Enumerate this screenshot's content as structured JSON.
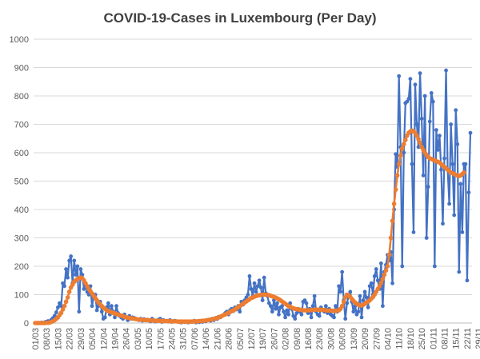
{
  "chart_data": {
    "type": "line",
    "title": "COVID-19-Cases in Luxembourg (Per Day)",
    "xlabel": "",
    "ylabel": "",
    "ylim": [
      0,
      1000
    ],
    "y_ticks": [
      0,
      100,
      200,
      300,
      400,
      500,
      600,
      700,
      800,
      900,
      1000
    ],
    "grid": true,
    "legend": "none",
    "x_tick_labels": [
      "01/03",
      "08/03",
      "15/03",
      "22/03",
      "29/03",
      "05/04",
      "12/04",
      "19/04",
      "26/04",
      "03/05",
      "10/05",
      "17/05",
      "24/05",
      "31/05",
      "07/06",
      "14/06",
      "21/06",
      "28/06",
      "05/07",
      "12/07",
      "19/07",
      "26/07",
      "02/08",
      "09/08",
      "16/08",
      "23/08",
      "30/08",
      "06/09",
      "13/09",
      "20/09",
      "27/09",
      "04/10",
      "11/10",
      "18/10",
      "25/10",
      "01/11",
      "08/11",
      "15/11",
      "22/11",
      "29/11"
    ],
    "tick_step_days": 7,
    "series": [
      {
        "color": "#4472C4",
        "values": [
          0,
          0,
          1,
          0,
          2,
          0,
          3,
          5,
          7,
          4,
          12,
          18,
          26,
          38,
          55,
          70,
          60,
          140,
          130,
          190,
          160,
          220,
          235,
          140,
          220,
          170,
          200,
          40,
          190,
          170,
          120,
          140,
          110,
          100,
          130,
          60,
          90,
          100,
          45,
          60,
          75,
          40,
          15,
          20,
          55,
          70,
          30,
          60,
          40,
          20,
          60,
          35,
          25,
          20,
          15,
          30,
          20,
          10,
          25,
          15,
          20,
          18,
          15,
          12,
          10,
          15,
          8,
          14,
          10,
          12,
          9,
          6,
          15,
          10,
          5,
          8,
          12,
          15,
          4,
          10,
          6,
          8,
          5,
          10,
          4,
          6,
          8,
          5,
          4,
          3,
          2,
          4,
          3,
          5,
          2,
          3,
          6,
          4,
          8,
          2,
          5,
          3,
          6,
          4,
          8,
          6,
          10,
          12,
          8,
          15,
          10,
          18,
          14,
          22,
          20,
          25,
          28,
          35,
          40,
          30,
          45,
          50,
          42,
          55,
          48,
          60,
          40,
          75,
          65,
          80,
          90,
          100,
          165,
          120,
          95,
          140,
          110,
          130,
          150,
          125,
          80,
          160,
          105,
          95,
          70,
          60,
          40,
          80,
          50,
          70,
          30,
          55,
          60,
          40,
          20,
          45,
          30,
          70,
          50,
          25,
          15,
          35,
          50,
          40,
          30,
          75,
          80,
          70,
          35,
          50,
          20,
          60,
          95,
          40,
          30,
          25,
          55,
          45,
          40,
          60,
          35,
          50,
          30,
          25,
          20,
          60,
          40,
          130,
          110,
          180,
          80,
          15,
          70,
          95,
          110,
          75,
          40,
          60,
          30,
          40,
          95,
          20,
          80,
          110,
          90,
          55,
          130,
          140,
          100,
          165,
          190,
          150,
          120,
          210,
          60,
          180,
          205,
          240,
          220,
          250,
          140,
          400,
          595,
          550,
          870,
          620,
          200,
          600,
          775,
          780,
          790,
          860,
          560,
          320,
          840,
          700,
          620,
          880,
          720,
          520,
          800,
          300,
          480,
          710,
          810,
          780,
          200,
          680,
          610,
          660,
          540,
          350,
          580,
          890,
          540,
          420,
          700,
          560,
          380,
          750,
          630,
          180,
          490,
          320,
          560,
          560,
          150,
          460,
          670
        ]
      },
      {
        "color": "#ED7D31",
        "values": [
          0,
          0,
          0,
          0,
          0,
          0,
          0,
          1,
          1,
          2,
          4,
          6,
          10,
          15,
          20,
          28,
          36,
          48,
          60,
          75,
          90,
          110,
          125,
          135,
          145,
          150,
          155,
          158,
          160,
          158,
          150,
          140,
          130,
          120,
          112,
          104,
          96,
          88,
          80,
          72,
          66,
          60,
          54,
          50,
          45,
          42,
          40,
          38,
          36,
          34,
          32,
          30,
          28,
          26,
          24,
          22,
          20,
          19,
          18,
          17,
          16,
          15,
          14,
          13,
          12,
          12,
          11,
          11,
          10,
          10,
          10,
          9,
          9,
          9,
          8,
          8,
          8,
          8,
          7,
          7,
          7,
          7,
          7,
          6,
          6,
          6,
          6,
          6,
          5,
          5,
          5,
          5,
          5,
          5,
          5,
          5,
          5,
          5,
          6,
          6,
          6,
          7,
          7,
          8,
          8,
          9,
          10,
          11,
          12,
          13,
          14,
          16,
          18,
          20,
          22,
          25,
          28,
          30,
          33,
          36,
          39,
          42,
          45,
          48,
          52,
          56,
          60,
          64,
          68,
          72,
          76,
          80,
          84,
          88,
          90,
          93,
          95,
          97,
          98,
          99,
          100,
          100,
          100,
          99,
          98,
          96,
          94,
          92,
          90,
          87,
          84,
          80,
          76,
          72,
          68,
          64,
          60,
          57,
          54,
          52,
          50,
          49,
          48,
          47,
          46,
          45,
          45,
          45,
          45,
          45,
          46,
          46,
          47,
          47,
          47,
          47,
          47,
          46,
          46,
          45,
          44,
          44,
          44,
          43,
          43,
          43,
          44,
          45,
          50,
          60,
          75,
          90,
          100,
          98,
          92,
          85,
          78,
          72,
          68,
          65,
          62,
          62,
          64,
          68,
          72,
          76,
          80,
          86,
          92,
          100,
          110,
          120,
          130,
          142,
          155,
          170,
          185,
          200,
          240,
          300,
          360,
          420,
          470,
          520,
          560,
          590,
          615,
          630,
          645,
          660,
          670,
          675,
          678,
          675,
          670,
          660,
          648,
          635,
          620,
          610,
          600,
          592,
          585,
          580,
          578,
          575,
          573,
          570,
          568,
          565,
          560,
          555,
          550,
          545,
          540,
          535,
          530,
          528,
          525,
          522,
          520,
          518,
          520,
          525,
          530
        ]
      }
    ]
  }
}
